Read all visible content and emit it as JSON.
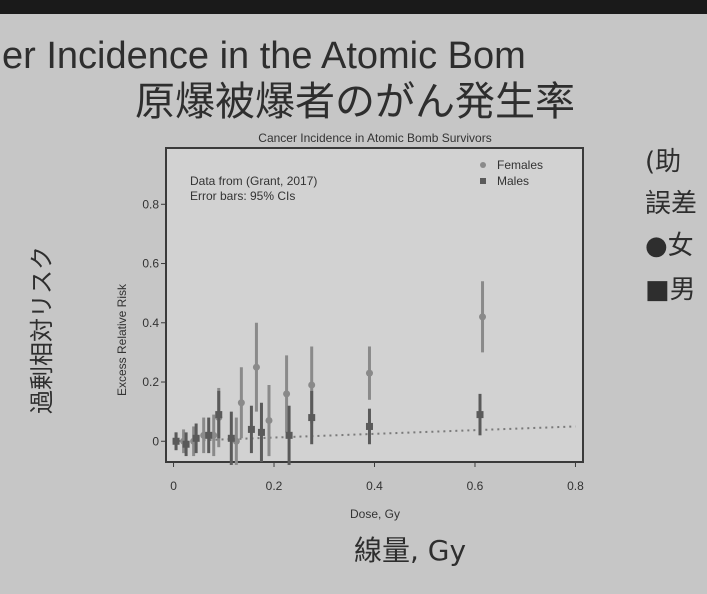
{
  "slide": {
    "heading": "er Incidence in the Atomic Bom",
    "heading_ja": "原爆被爆者のがん発生率",
    "y_label_ja": "過剰相対リスク",
    "x_label_ja": "線量, Gy",
    "side_notes": [
      "(助",
      "誤差",
      "●女",
      "■男"
    ]
  },
  "chart_data": {
    "type": "scatter",
    "title": "Cancer Incidence in Atomic Bomb Survivors",
    "x_label": "Dose, Gy",
    "y_label": "Excess Relative Risk",
    "annotations": [
      "Data from (Grant, 2017)",
      "Error bars: 95% CIs"
    ],
    "xlim": [
      -0.015,
      0.815
    ],
    "ylim": [
      -0.07,
      0.99
    ],
    "xticks": [
      0,
      0.2,
      0.4,
      0.6,
      0.8
    ],
    "yticks": [
      0,
      0.2,
      0.4,
      0.6,
      0.8
    ],
    "legend": "upper right",
    "series": [
      {
        "name": "Females",
        "color": "#8a8a8a",
        "marker": "circle",
        "x": [
          0.005,
          0.02,
          0.04,
          0.06,
          0.08,
          0.09,
          0.125,
          0.135,
          0.165,
          0.19,
          0.225,
          0.275,
          0.39,
          0.615
        ],
        "values": [
          0.0,
          0.0,
          0.0,
          0.02,
          0.02,
          0.08,
          0.0,
          0.13,
          0.25,
          0.07,
          0.16,
          0.19,
          0.23,
          0.42
        ],
        "errors": [
          0.03,
          0.04,
          0.05,
          0.06,
          0.07,
          0.1,
          0.08,
          0.12,
          0.15,
          0.12,
          0.13,
          0.13,
          0.09,
          0.12
        ]
      },
      {
        "name": "Males",
        "color": "#5a5a5a",
        "marker": "square",
        "x": [
          0.005,
          0.025,
          0.045,
          0.07,
          0.09,
          0.115,
          0.155,
          0.175,
          0.23,
          0.275,
          0.39,
          0.61
        ],
        "values": [
          0.0,
          -0.01,
          0.01,
          0.02,
          0.09,
          0.01,
          0.04,
          0.03,
          0.02,
          0.08,
          0.05,
          0.09
        ],
        "errors": [
          0.03,
          0.04,
          0.05,
          0.06,
          0.08,
          0.09,
          0.08,
          0.1,
          0.1,
          0.09,
          0.06,
          0.07
        ]
      }
    ],
    "reference_line": {
      "x": [
        0,
        0.8
      ],
      "values": [
        0,
        0.05
      ],
      "color": "#7a7a7a"
    }
  }
}
